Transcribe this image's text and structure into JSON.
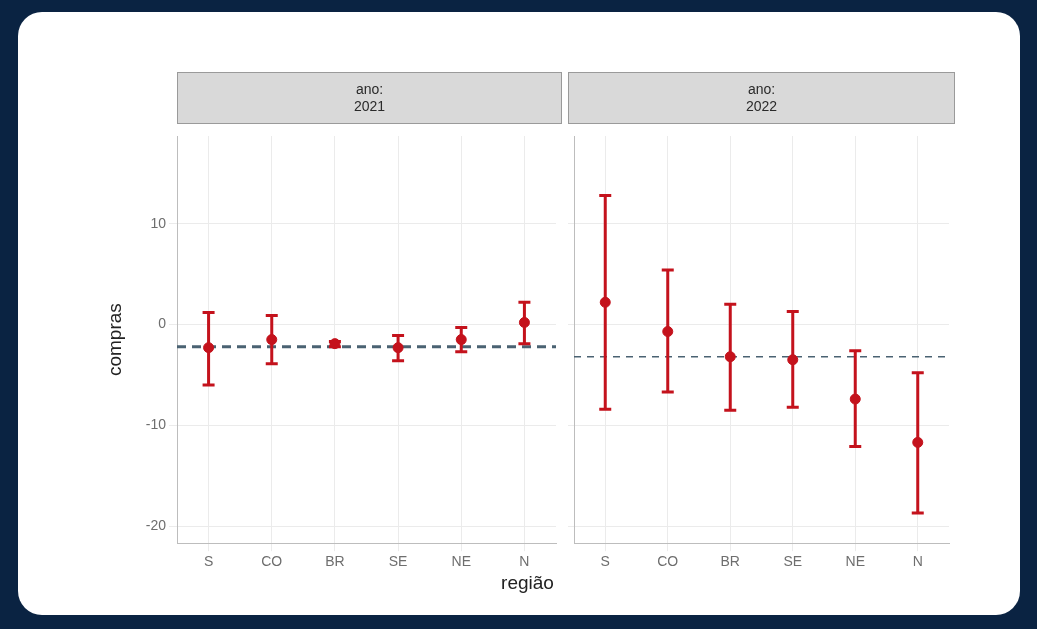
{
  "chart_data": [
    {
      "type": "scatter",
      "title": "ano:\n2021",
      "xlabel": "região",
      "ylabel": "compras",
      "categories": [
        "S",
        "CO",
        "BR",
        "SE",
        "NE",
        "N"
      ],
      "ylim": [
        -21.7,
        18.7
      ],
      "yticks": [
        -20,
        -10,
        0,
        10
      ],
      "grid": true,
      "legend": false,
      "marker": "circle",
      "series": [
        {
          "color": "#c4121c",
          "values": [
            -2.3,
            -1.5,
            -1.9,
            -2.3,
            -1.5,
            0.2
          ],
          "errors": [
            [
              -6.0,
              1.2
            ],
            [
              -3.9,
              0.9
            ],
            [
              -2.2,
              -1.7
            ],
            [
              -3.6,
              -1.1
            ],
            [
              -2.7,
              -0.3
            ],
            [
              -1.9,
              2.2
            ]
          ]
        }
      ],
      "ref_lines": [
        {
          "axis": "y",
          "value": -2.2,
          "color": "#4a6272",
          "line_style": "dashed"
        }
      ]
    },
    {
      "type": "scatter",
      "title": "ano:\n2022",
      "categories": [
        "S",
        "CO",
        "BR",
        "SE",
        "NE",
        "N"
      ],
      "ylim": [
        -21.7,
        18.7
      ],
      "yticks": [
        -20,
        -10,
        0,
        10
      ],
      "tick_labels": "x",
      "grid": true,
      "legend": false,
      "marker": "circle",
      "series": [
        {
          "color": "#c4121c",
          "values": [
            2.2,
            -0.7,
            -3.2,
            -3.5,
            -7.4,
            -11.7
          ],
          "errors": [
            [
              -8.4,
              12.8
            ],
            [
              -6.7,
              5.4
            ],
            [
              -8.5,
              2.0
            ],
            [
              -8.2,
              1.3
            ],
            [
              -12.1,
              -2.6
            ],
            [
              -18.7,
              -4.8
            ]
          ]
        }
      ],
      "ref_lines": [
        {
          "axis": "y",
          "value": -3.2,
          "color": "#4a6272",
          "line_style": "thin-dashed"
        }
      ]
    }
  ]
}
